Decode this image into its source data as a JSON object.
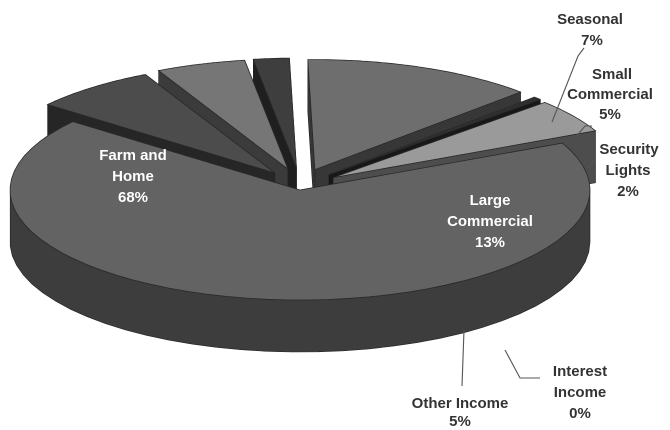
{
  "chart_data": {
    "type": "pie",
    "title": "",
    "slices": [
      {
        "name": "Farm and Home",
        "value": 68,
        "label": "68%"
      },
      {
        "name": "Seasonal",
        "value": 7,
        "label": "7%"
      },
      {
        "name": "Small Commercial",
        "value": 5,
        "label": "5%"
      },
      {
        "name": "Security Lights",
        "value": 2,
        "label": "2%"
      },
      {
        "name": "Large Commercial",
        "value": 13,
        "label": "13%"
      },
      {
        "name": "Interest Income",
        "value": 0,
        "label": "0%"
      },
      {
        "name": "Other Income",
        "value": 5,
        "label": "5%"
      }
    ],
    "exploded": [
      "Seasonal",
      "Small Commercial",
      "Security Lights",
      "Large Commercial",
      "Interest Income",
      "Other Income"
    ],
    "style": "3d-exploded-pie",
    "colors": {
      "Farm and Home": "#636363",
      "Seasonal": "#4c4c4c",
      "Small Commercial": "#767676",
      "Security Lights": "#3e3e3e",
      "Large Commercial": "#6e6e6e",
      "Interest Income": "#2f2f2f",
      "Other Income": "#9a9a9a"
    }
  },
  "labels": {
    "farm_line1": "Farm and",
    "farm_line2": "Home",
    "farm_pct": "68%",
    "seasonal_name": "Seasonal",
    "seasonal_pct": "7%",
    "small_line1": "Small",
    "small_line2": "Commercial",
    "small_pct": "5%",
    "security_line1": "Security",
    "security_line2": "Lights",
    "security_pct": "2%",
    "large_line1": "Large",
    "large_line2": "Commercial",
    "large_pct": "13%",
    "interest_line1": "Interest",
    "interest_line2": "Income",
    "interest_pct": "0%",
    "other_name": "Other Income",
    "other_pct": "5%"
  }
}
